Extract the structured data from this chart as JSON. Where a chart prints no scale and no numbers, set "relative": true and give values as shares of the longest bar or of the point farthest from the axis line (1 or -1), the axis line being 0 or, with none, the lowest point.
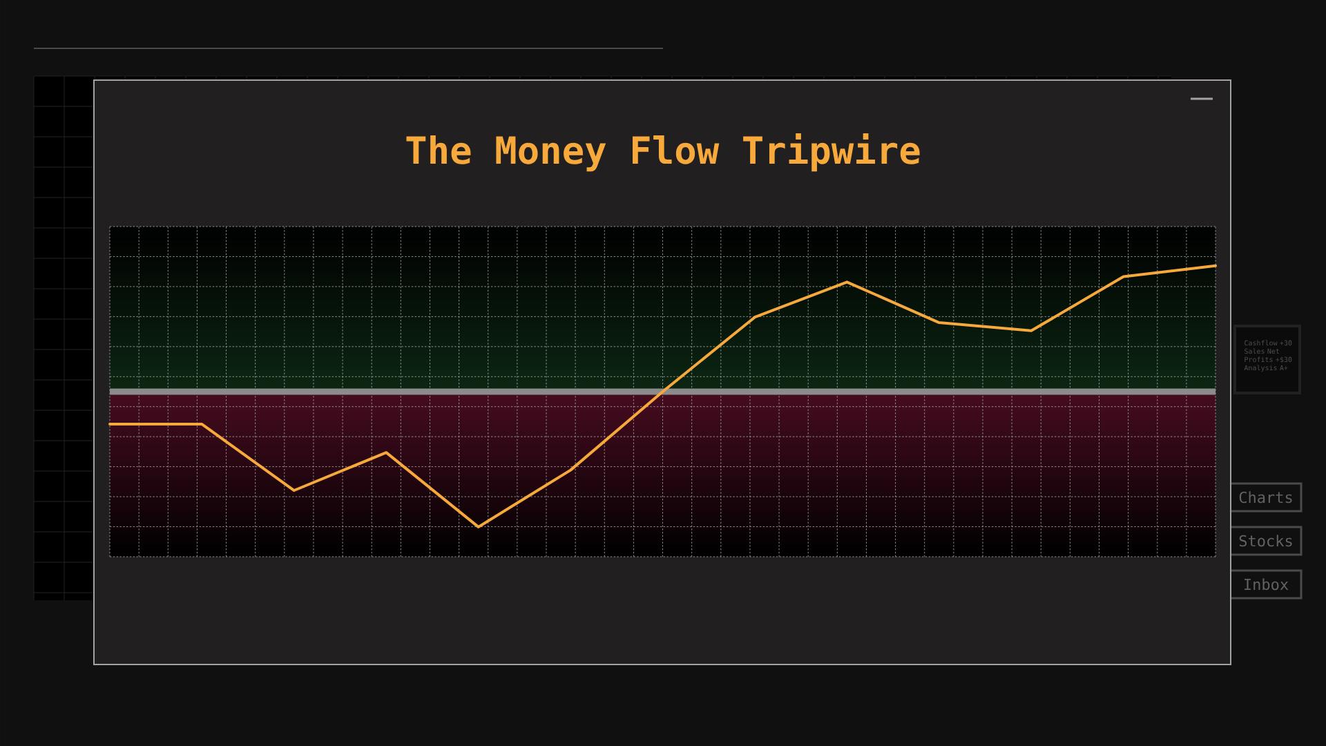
{
  "chart_data": {
    "type": "line",
    "title": "The Money Flow Tripwire",
    "annotations": [
      "Cashflow +30 Sales Net Profits +$30 Analysis A+",
      "Charts",
      "Stocks",
      "Inbox"
    ],
    "categories": [
      null,
      null,
      null,
      null,
      null,
      null,
      null,
      null,
      null,
      null,
      null,
      null,
      null
    ],
    "values": [
      -0.24,
      -0.24,
      -0.73,
      -0.45,
      -1,
      -0.58,
      0,
      0.55,
      0.81,
      0.51,
      0.45,
      0.85,
      0.93
    ],
    "color": "#f7a93b",
    "relative": true,
    "ref_lines": [
      {
        "axis": "y",
        "value": 0,
        "color": "#8c8c8c"
      }
    ],
    "bands": [
      {
        "axis": "y",
        "from": 0,
        "to": 1.22,
        "color": "#0c2612"
      },
      {
        "axis": "y",
        "from": -1.22,
        "to": 0,
        "color": "#480c20"
      }
    ],
    "grid": true
  }
}
